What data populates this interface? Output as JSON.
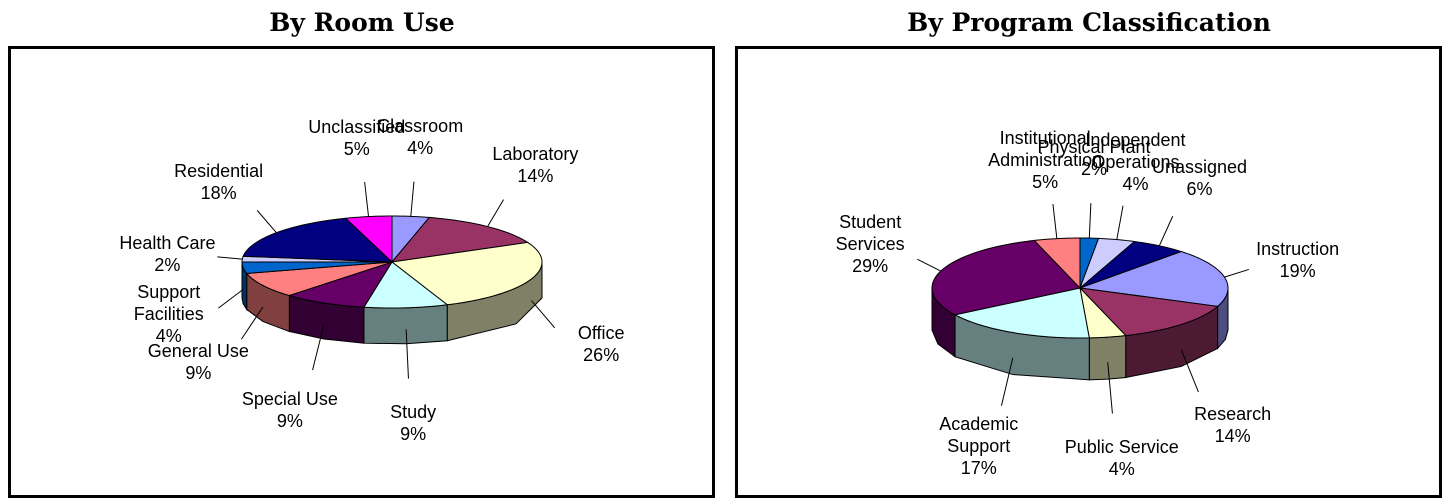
{
  "chart_data": [
    {
      "type": "pie",
      "title": "By Room Use",
      "categories": [
        "Classroom",
        "Laboratory",
        "Office",
        "Study",
        "Special Use",
        "General Use",
        "Support Facilities",
        "Health Care",
        "Residential",
        "Unclassified"
      ],
      "values": [
        4,
        14,
        26,
        9,
        9,
        9,
        4,
        2,
        18,
        5
      ],
      "value_labels": [
        "4%",
        "14%",
        "26%",
        "9%",
        "9%",
        "9%",
        "4%",
        "2%",
        "18%",
        "5%"
      ],
      "colors": [
        "#9999ff",
        "#993366",
        "#ffffcc",
        "#ccffff",
        "#660066",
        "#ff8080",
        "#0066cc",
        "#ccccff",
        "#000080",
        "#ff00ff"
      ]
    },
    {
      "type": "pie",
      "title": "By Program Classification",
      "categories": [
        "Physical Plant",
        "Independent Operations",
        "Unassigned",
        "Instruction",
        "Research",
        "Public Service",
        "Academic Support",
        "Student Services",
        "Institutional Administration"
      ],
      "values": [
        2,
        4,
        6,
        19,
        14,
        4,
        17,
        29,
        5
      ],
      "value_labels": [
        "2%",
        "4%",
        "6%",
        "19%",
        "14%",
        "4%",
        "17%",
        "29%",
        "5%"
      ],
      "colors": [
        "#0066cc",
        "#ccccff",
        "#000080",
        "#9999ff",
        "#993366",
        "#ffffcc",
        "#ccffff",
        "#660066",
        "#ff8080"
      ]
    }
  ]
}
